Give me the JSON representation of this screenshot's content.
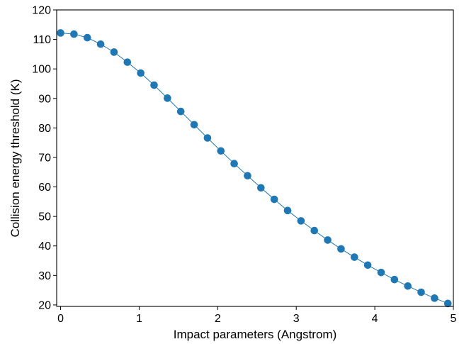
{
  "chart_data": {
    "type": "line",
    "title": "",
    "xlabel": "Impact parameters (Angstrom)",
    "ylabel": "Collision energy threshold (K)",
    "xlim": [
      -0.05,
      5.0
    ],
    "ylim": [
      19.5,
      120
    ],
    "xticks": [
      0,
      1,
      2,
      3,
      4,
      5
    ],
    "yticks": [
      20,
      30,
      40,
      50,
      60,
      70,
      80,
      90,
      100,
      110,
      120
    ],
    "grid": false,
    "color": "#1f77b4",
    "series": [
      {
        "marker": "circle",
        "x": [
          0,
          0.17,
          0.34,
          0.51,
          0.68,
          0.85,
          1.02,
          1.19,
          1.36,
          1.53,
          1.7,
          1.87,
          2.04,
          2.21,
          2.38,
          2.55,
          2.72,
          2.89,
          3.06,
          3.23,
          3.4,
          3.57,
          3.74,
          3.91,
          4.08,
          4.25,
          4.42,
          4.59,
          4.76,
          4.93
        ],
        "y": [
          112.2,
          111.8,
          110.6,
          108.4,
          105.7,
          102.3,
          98.6,
          94.5,
          90.1,
          85.6,
          81.1,
          76.6,
          72.2,
          67.9,
          63.8,
          59.7,
          55.8,
          52.0,
          48.5,
          45.2,
          42.0,
          39.0,
          36.2,
          33.5,
          31.0,
          28.6,
          26.4,
          24.3,
          22.3,
          20.5
        ]
      }
    ]
  }
}
